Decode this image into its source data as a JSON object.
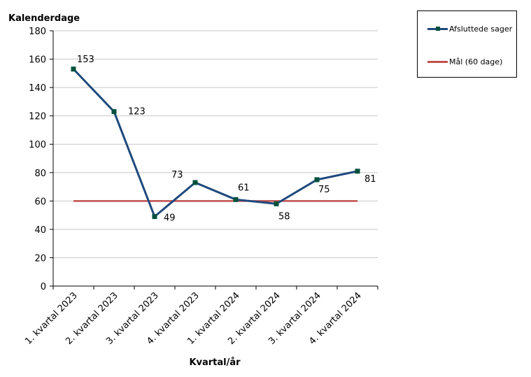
{
  "chart_data": {
    "type": "line",
    "ylabel": "Kalenderdage",
    "xlabel": "Kvartal/år",
    "ylim": [
      0,
      180
    ],
    "yticks": [
      0,
      20,
      40,
      60,
      80,
      100,
      120,
      140,
      160,
      180
    ],
    "grid": true,
    "legend_position": "top-right",
    "categories": [
      "1. kvartal 2023",
      "2. kvartal 2023",
      "3. kvartal 2023",
      "4. kvartal 2023",
      "1. kvartal 2024",
      "2. kvartal 2024",
      "3. kvartal 2024",
      "4. kvartal 2024"
    ],
    "series": [
      {
        "name": "Afsluttede sager",
        "color": "#1F497D",
        "marker_color": "#00503C",
        "values": [
          153,
          123,
          49,
          73,
          61,
          58,
          75,
          81
        ]
      },
      {
        "name": "Mål (60 dage)",
        "color": "#C0504D",
        "values": [
          60,
          60,
          60,
          60,
          60,
          60,
          60,
          60
        ]
      }
    ]
  }
}
